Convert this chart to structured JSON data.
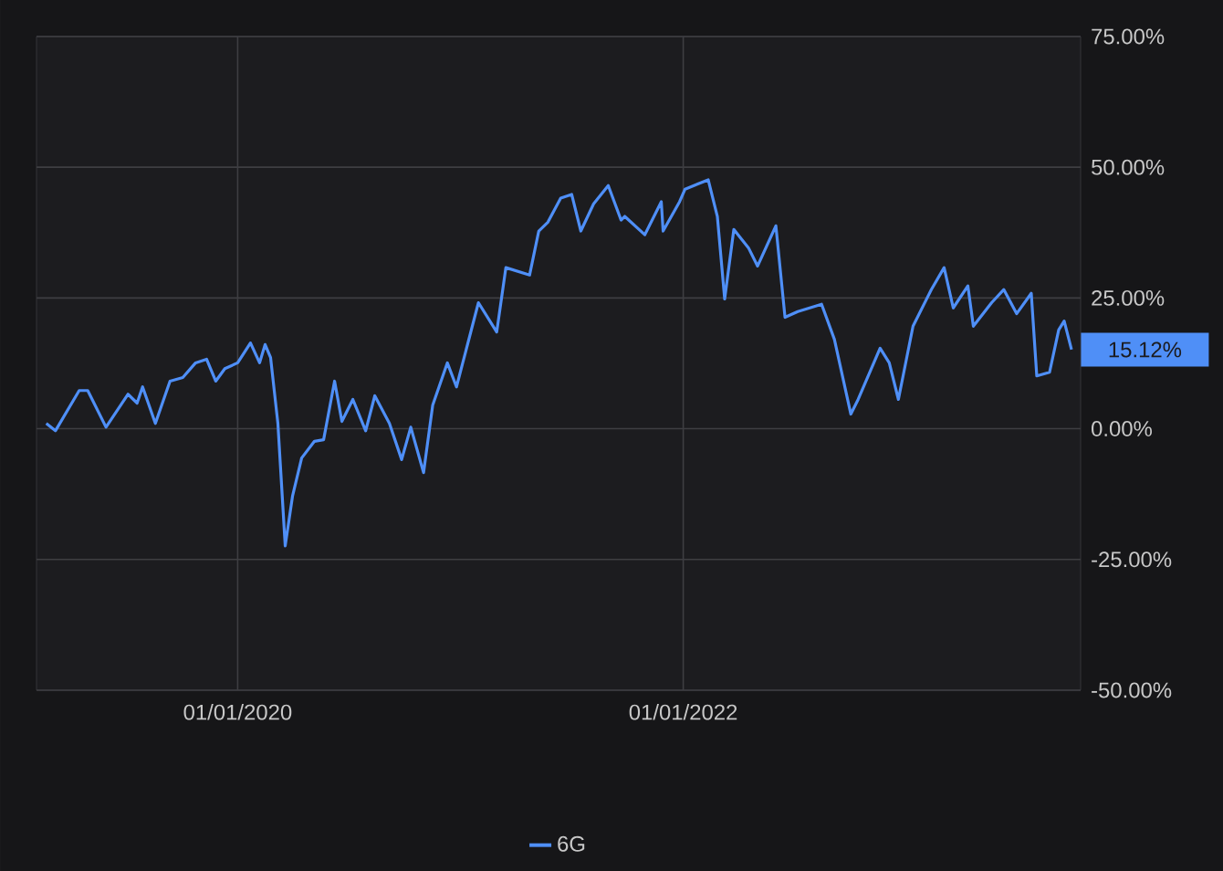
{
  "chart_data": {
    "type": "line",
    "x": [
      "2019-02-21",
      "2019-03-08",
      "2019-04-16",
      "2019-04-30",
      "2019-05-30",
      "2019-07-05",
      "2019-07-20",
      "2019-07-29",
      "2019-08-19",
      "2019-09-12",
      "2019-10-03",
      "2019-10-24",
      "2019-11-11",
      "2019-11-26",
      "2019-12-11",
      "2020-01-01",
      "2020-01-22",
      "2020-02-06",
      "2020-02-15",
      "2020-02-24",
      "2020-03-07",
      "2020-03-19",
      "2020-03-31",
      "2020-04-15",
      "2020-05-06",
      "2020-05-21",
      "2020-06-08",
      "2020-06-20",
      "2020-07-08",
      "2020-07-29",
      "2020-08-13",
      "2020-09-06",
      "2020-09-26",
      "2020-10-11",
      "2020-11-01",
      "2020-11-16",
      "2020-12-10",
      "2020-12-25",
      "2021-01-30",
      "2021-02-14",
      "2021-03-01",
      "2021-03-16",
      "2021-04-24",
      "2021-05-09",
      "2021-05-24",
      "2021-06-14",
      "2021-07-02",
      "2021-07-17",
      "2021-08-07",
      "2021-08-31",
      "2021-09-21",
      "2021-09-27",
      "2021-10-30",
      "2021-11-26",
      "2021-11-29",
      "2021-12-26",
      "2022-01-04",
      "2022-02-11",
      "2022-02-26",
      "2022-03-10",
      "2022-03-25",
      "2022-04-18",
      "2022-05-03",
      "2022-06-02",
      "2022-06-17",
      "2022-07-08",
      "2022-08-16",
      "2022-09-06",
      "2022-10-03",
      "2022-10-15",
      "2022-11-20",
      "2022-12-05",
      "2022-12-20",
      "2023-01-13",
      "2023-02-12",
      "2023-03-05",
      "2023-03-20",
      "2023-04-13",
      "2023-04-22",
      "2023-05-22",
      "2023-06-11",
      "2023-07-02",
      "2023-07-26",
      "2023-08-04",
      "2023-08-25",
      "2023-09-09",
      "2023-09-18",
      "2023-09-30"
    ],
    "series": [
      {
        "name": "6G",
        "color": "#4f8ff7",
        "values": [
          1.0,
          -0.4,
          7.3,
          7.3,
          0.3,
          6.6,
          4.9,
          8.0,
          1.0,
          9.1,
          9.8,
          12.6,
          13.3,
          9.1,
          11.5,
          12.6,
          16.4,
          12.6,
          16.1,
          13.6,
          1.0,
          -22.4,
          -12.9,
          -5.6,
          -2.4,
          -2.1,
          9.1,
          1.4,
          5.6,
          -0.4,
          6.3,
          1.0,
          -5.9,
          0.3,
          -8.4,
          4.5,
          12.6,
          8.0,
          24.1,
          21.3,
          18.5,
          30.8,
          29.4,
          37.8,
          39.5,
          44.1,
          44.8,
          37.8,
          43.0,
          46.5,
          39.9,
          40.6,
          37.1,
          43.4,
          37.8,
          43.4,
          45.8,
          47.6,
          40.6,
          24.8,
          38.1,
          34.6,
          31.1,
          38.8,
          21.3,
          22.4,
          23.8,
          17.1,
          2.8,
          5.6,
          15.4,
          12.6,
          5.6,
          19.6,
          26.6,
          30.8,
          23.1,
          27.3,
          19.6,
          24.1,
          26.6,
          22.0,
          25.9,
          10.1,
          10.8,
          18.9,
          20.6,
          15.12
        ]
      }
    ],
    "xlim": [
      "2019-02-05",
      "2023-10-15"
    ],
    "xticks": [
      {
        "value": "2020-01-01",
        "label": "01/01/2020"
      },
      {
        "value": "2022-01-01",
        "label": "01/01/2022"
      }
    ],
    "ylim": [
      -50,
      75
    ],
    "yticks": [
      {
        "value": -50,
        "label": "-50.00%"
      },
      {
        "value": -25,
        "label": "-25.00%"
      },
      {
        "value": 0,
        "label": "0.00%"
      },
      {
        "value": 25,
        "label": "25.00%"
      },
      {
        "value": 50,
        "label": "50.00%"
      },
      {
        "value": 75,
        "label": "75.00%"
      }
    ],
    "annotations": [
      {
        "text": "15.12%",
        "x": "2023-09-30",
        "y": 15.12
      }
    ],
    "grid": true,
    "legend": "bottom",
    "marker": "none",
    "line_style": "solid"
  }
}
